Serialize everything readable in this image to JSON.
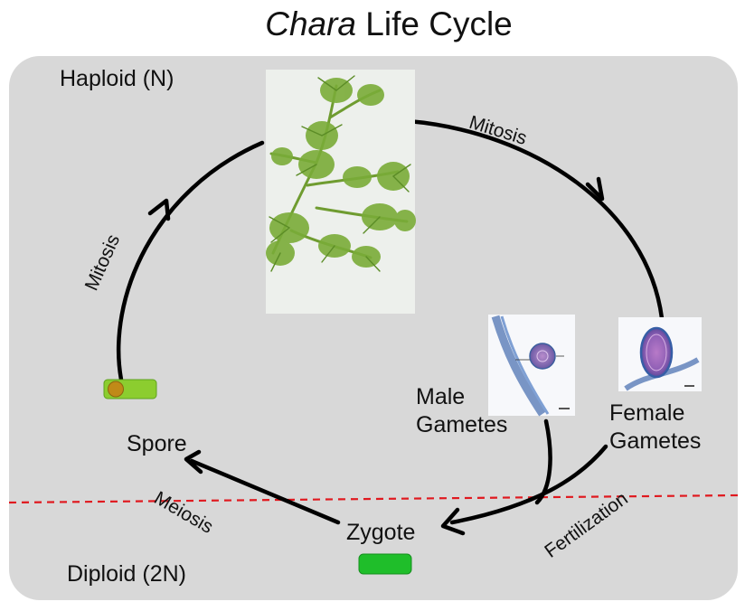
{
  "title": {
    "italic_part": "Chara",
    "rest": " Life Cycle"
  },
  "regions": {
    "haploid": "Haploid (N)",
    "diploid": "Diploid (2N)"
  },
  "stages": {
    "male_gametes_line1": "Male",
    "male_gametes_line2": "Gametes",
    "female_gametes_line1": "Female",
    "female_gametes_line2": "Gametes",
    "zygote": "Zygote",
    "spore": "Spore"
  },
  "processes": {
    "mitosis_top": "Mitosis",
    "mitosis_left": "Mitosis",
    "meiosis": "Meiosis",
    "fertilization": "Fertilization"
  },
  "colors": {
    "panel": "#d8d8d8",
    "arrow": "#000000",
    "ploidy_divider": "#e0191f",
    "spore_marker_fill": "#8ccd2f",
    "spore_marker_dot": "#c08a18",
    "zygote_marker_fill": "#1fbe2a"
  }
}
